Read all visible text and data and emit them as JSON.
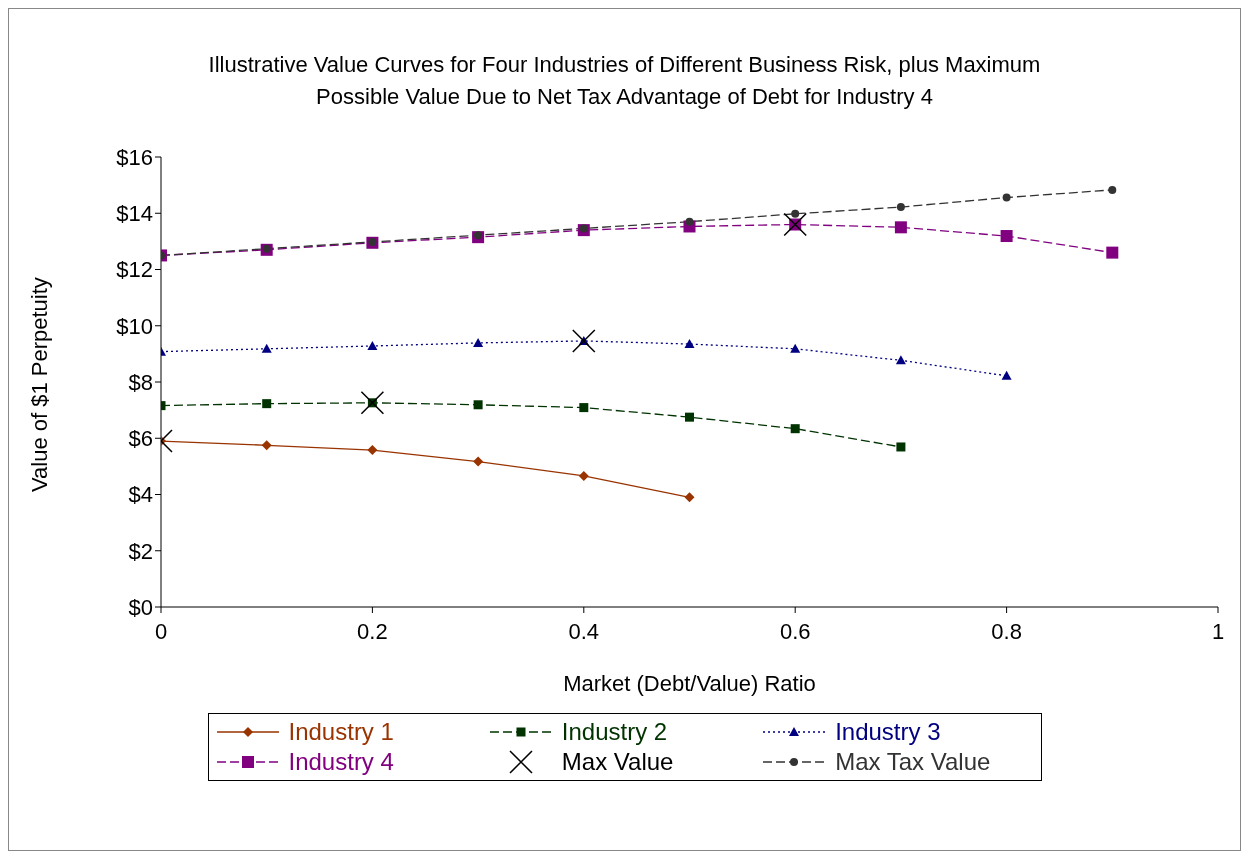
{
  "chart_data": {
    "type": "line",
    "title": "Illustrative Value Curves for Four Industries of Different Business Risk, plus Maximum Possible Value Due to Net Tax Advantage of Debt for Industry 4",
    "xlabel": "Market (Debt/Value) Ratio",
    "ylabel": "Value of $1 Perpetuity",
    "xlim": [
      0,
      1
    ],
    "xticks": [
      0,
      0.2,
      0.4,
      0.6,
      0.8,
      1
    ],
    "ylim": [
      0,
      16
    ],
    "yticks": [
      {
        "value": 0,
        "label": "$0"
      },
      {
        "value": 2,
        "label": "$2"
      },
      {
        "value": 4,
        "label": "$4"
      },
      {
        "value": 6,
        "label": "$6"
      },
      {
        "value": 8,
        "label": "$8"
      },
      {
        "value": 10,
        "label": "$10"
      },
      {
        "value": 12,
        "label": "$12"
      },
      {
        "value": 14,
        "label": "$14"
      },
      {
        "value": 16,
        "label": "$16"
      }
    ],
    "legend": "bottom",
    "series": [
      {
        "name": "Industry 1",
        "color": "#993300",
        "marker": "diamond",
        "line_style": "solid",
        "x": [
          0,
          0.1,
          0.2,
          0.3,
          0.4,
          0.5
        ],
        "values": [
          5.9,
          5.75,
          5.58,
          5.17,
          4.66,
          3.9
        ]
      },
      {
        "name": "Industry 2",
        "color": "#003300",
        "marker": "square",
        "line_style": "dashed",
        "x": [
          0,
          0.1,
          0.2,
          0.3,
          0.4,
          0.5,
          0.6,
          0.7
        ],
        "values": [
          7.16,
          7.23,
          7.26,
          7.19,
          7.09,
          6.75,
          6.34,
          5.69
        ]
      },
      {
        "name": "Industry 3",
        "color": "#000080",
        "marker": "triangle",
        "line_style": "dotted",
        "x": [
          0,
          0.1,
          0.2,
          0.3,
          0.4,
          0.5,
          0.6,
          0.7,
          0.8
        ],
        "values": [
          9.08,
          9.18,
          9.28,
          9.39,
          9.46,
          9.35,
          9.18,
          8.77,
          8.22
        ]
      },
      {
        "name": "Industry 4",
        "color": "#800080",
        "marker": "square",
        "line_style": "dashed",
        "x": [
          0,
          0.1,
          0.2,
          0.3,
          0.4,
          0.5,
          0.6,
          0.7,
          0.8,
          0.9
        ],
        "values": [
          12.5,
          12.7,
          12.95,
          13.15,
          13.4,
          13.53,
          13.6,
          13.5,
          13.19,
          12.6
        ]
      },
      {
        "name": "Max Value",
        "type": "scatter",
        "color": "#000000",
        "marker": "cross",
        "x": [
          0,
          0.2,
          0.4,
          0.6
        ],
        "values": [
          5.9,
          7.26,
          9.46,
          13.6
        ]
      },
      {
        "name": "Max Tax Value",
        "color": "#333333",
        "marker": "circle",
        "line_style": "dashed",
        "x": [
          0,
          0.1,
          0.2,
          0.3,
          0.4,
          0.5,
          0.6,
          0.7,
          0.8,
          0.9
        ],
        "values": [
          12.5,
          12.74,
          12.98,
          13.22,
          13.46,
          13.7,
          13.98,
          14.22,
          14.56,
          14.83
        ]
      }
    ]
  }
}
